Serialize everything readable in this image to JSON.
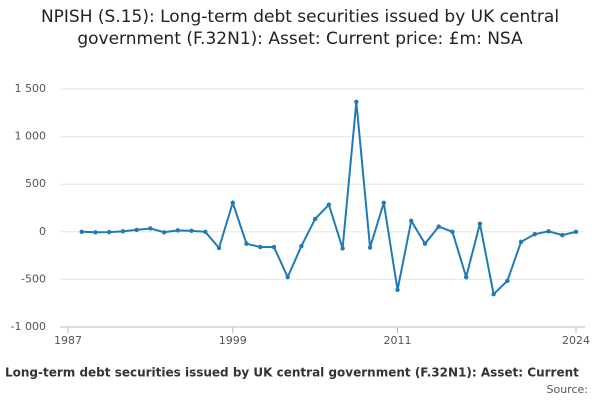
{
  "chart_data": {
    "type": "line",
    "title": "NPISH (S.15): Long-term debt securities issued by UK central government (F.32N1): Asset: Current price: £m: NSA",
    "footer": ": Long-term debt securities issued by UK central government (F.32N1): Asset: Current",
    "source": "Source:",
    "x": [
      1988,
      1989,
      1990,
      1991,
      1992,
      1993,
      1994,
      1995,
      1996,
      1997,
      1998,
      1999,
      2000,
      2001,
      2002,
      2003,
      2004,
      2005,
      2006,
      2007,
      2008,
      2009,
      2010,
      2011,
      2012,
      2013,
      2014,
      2015,
      2016,
      2017,
      2018,
      2019,
      2020,
      2021,
      2022,
      2023,
      2024
    ],
    "series": [
      {
        "color": "#1f7bb6",
        "values": [
          0,
          -5,
          -3,
          5,
          20,
          35,
          -5,
          15,
          10,
          0,
          -170,
          305,
          -125,
          -160,
          -160,
          -475,
          -150,
          135,
          285,
          -175,
          1365,
          -165,
          305,
          -610,
          115,
          -125,
          55,
          0,
          -475,
          85,
          -655,
          -515,
          -105,
          -25,
          5,
          -35,
          0
        ]
      }
    ],
    "xlim": [
      1987,
      2024
    ],
    "xticks": [
      1987,
      1999,
      2011,
      2024
    ],
    "ylim": [
      -1000,
      1500
    ],
    "yticks": [
      {
        "value": 1500,
        "label": "1 500"
      },
      {
        "value": 1000,
        "label": "1 000"
      },
      500,
      0,
      -500,
      {
        "value": -1000,
        "label": "-1 000"
      }
    ],
    "grid": true
  }
}
